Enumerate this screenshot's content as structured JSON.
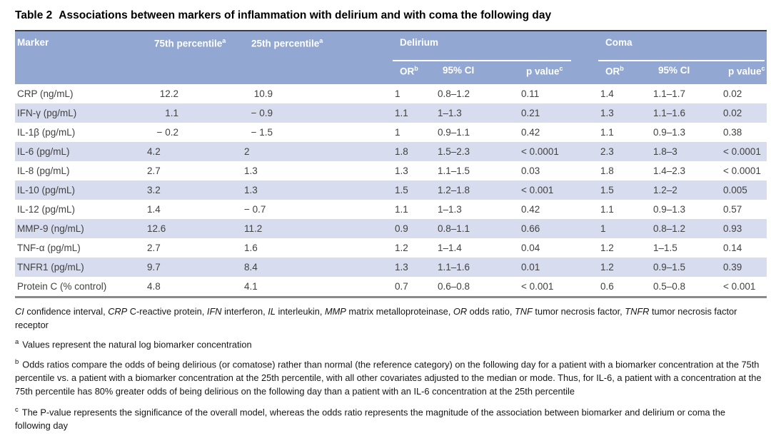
{
  "title": {
    "label": "Table 2",
    "text": "Associations between markers of inflammation with delirium and with coma the following day"
  },
  "table": {
    "header": {
      "marker": "Marker",
      "p75": {
        "label": "75th percentile",
        "sup": "a"
      },
      "p25": {
        "label": "25th percentile",
        "sup": "a"
      },
      "delirium": "Delirium",
      "coma": "Coma",
      "or": {
        "label": "OR",
        "sup": "b"
      },
      "ci": "95% CI",
      "p": {
        "label": "p value",
        "sup": "c"
      }
    },
    "rows": [
      {
        "marker": "CRP (ng/mL)",
        "p75": "12.2",
        "p25": "10.9",
        "delirium": {
          "or": "1",
          "ci": "0.8–1.2",
          "p": "0.11"
        },
        "coma": {
          "or": "1.4",
          "ci": "1.1–1.7",
          "p": "0.02"
        }
      },
      {
        "marker": "IFN-γ (pg/mL)",
        "p75": "1.1",
        "p25": "− 0.9",
        "delirium": {
          "or": "1.1",
          "ci": "1–1.3",
          "p": "0.21"
        },
        "coma": {
          "or": "1.3",
          "ci": "1.1–1.6",
          "p": "0.02"
        }
      },
      {
        "marker": "IL-1β (pg/mL)",
        "p75": "− 0.2",
        "p25": "− 1.5",
        "delirium": {
          "or": "1",
          "ci": "0.9–1.1",
          "p": "0.42"
        },
        "coma": {
          "or": "1.1",
          "ci": "0.9–1.3",
          "p": "0.38"
        }
      },
      {
        "marker": "IL-6 (pg/mL)",
        "p75": "4.2",
        "p25": "2",
        "delirium": {
          "or": "1.8",
          "ci": "1.5–2.3",
          "p": "< 0.0001"
        },
        "coma": {
          "or": "2.3",
          "ci": "1.8–3",
          "p": "< 0.0001"
        }
      },
      {
        "marker": "IL-8 (pg/mL)",
        "p75": "2.7",
        "p25": "1.3",
        "delirium": {
          "or": "1.3",
          "ci": "1.1–1.5",
          "p": "0.03"
        },
        "coma": {
          "or": "1.8",
          "ci": "1.4–2.3",
          "p": "< 0.0001"
        }
      },
      {
        "marker": "IL-10 (pg/mL)",
        "p75": "3.2",
        "p25": "1.3",
        "delirium": {
          "or": "1.5",
          "ci": "1.2–1.8",
          "p": "< 0.001"
        },
        "coma": {
          "or": "1.5",
          "ci": "1.2–2",
          "p": "0.005"
        }
      },
      {
        "marker": "IL-12 (pg/mL)",
        "p75": "1.4",
        "p25": "− 0.7",
        "delirium": {
          "or": "1.1",
          "ci": "1–1.3",
          "p": "0.42"
        },
        "coma": {
          "or": "1.1",
          "ci": "0.9–1.3",
          "p": "0.57"
        }
      },
      {
        "marker": "MMP-9 (ng/mL)",
        "p75": "12.6",
        "p25": "11.2",
        "delirium": {
          "or": "0.9",
          "ci": "0.8–1.1",
          "p": "0.66"
        },
        "coma": {
          "or": "1",
          "ci": "0.8–1.2",
          "p": "0.93"
        }
      },
      {
        "marker": "TNF-α (pg/mL)",
        "p75": "2.7",
        "p25": "1.6",
        "delirium": {
          "or": "1.2",
          "ci": "1–1.4",
          "p": "0.04"
        },
        "coma": {
          "or": "1.2",
          "ci": "1–1.5",
          "p": "0.14"
        }
      },
      {
        "marker": "TNFR1 (pg/mL)",
        "p75": "9.7",
        "p25": "8.4",
        "delirium": {
          "or": "1.3",
          "ci": "1.1–1.6",
          "p": "0.01"
        },
        "coma": {
          "or": "1.2",
          "ci": "0.9–1.5",
          "p": "0.39"
        }
      },
      {
        "marker": "Protein C (% control)",
        "p75": "4.8",
        "p25": "4.1",
        "delirium": {
          "or": "0.7",
          "ci": "0.6–0.8",
          "p": "< 0.001"
        },
        "coma": {
          "or": "0.6",
          "ci": "0.5–0.8",
          "p": "< 0.001"
        }
      }
    ]
  },
  "footnotes": {
    "abbreviations": [
      {
        "abbr": "CI",
        "text": "confidence interval"
      },
      {
        "abbr": "CRP",
        "text": "C-reactive protein"
      },
      {
        "abbr": "IFN",
        "text": "interferon"
      },
      {
        "abbr": "IL",
        "text": "interleukin"
      },
      {
        "abbr": "MMP",
        "text": "matrix metalloproteinase"
      },
      {
        "abbr": "OR",
        "text": "odds ratio"
      },
      {
        "abbr": "TNF",
        "text": "tumor necrosis factor"
      },
      {
        "abbr": "TNFR",
        "text": "tumor necrosis factor receptor"
      }
    ],
    "a": {
      "marker": "a",
      "text": "Values represent the natural log biomarker concentration"
    },
    "b": {
      "marker": "b",
      "text": "Odds ratios compare the odds of being delirious (or comatose) rather than normal (the reference category) on the following day for a patient with a biomarker concentration at the 75th percentile vs. a patient with a biomarker concentration at the 25th percentile, with all other covariates adjusted to the median or mode. Thus, for IL-6, a patient with a concentration at the 75th percentile has 80% greater odds of being delirious on the following day than a patient with an IL-6 concentration at the 25th percentile"
    },
    "c": {
      "marker": "c",
      "text": "The P-value represents the significance of the overall model, whereas the odds ratio represents the magnitude of the association between biomarker and delirium or coma the following day"
    }
  },
  "colors": {
    "header_blue": "#92a7d1",
    "stripe_blue": "#d7ddef",
    "top_rule": "#3b3b3b",
    "bottom_rule": "#8a8a8a"
  }
}
